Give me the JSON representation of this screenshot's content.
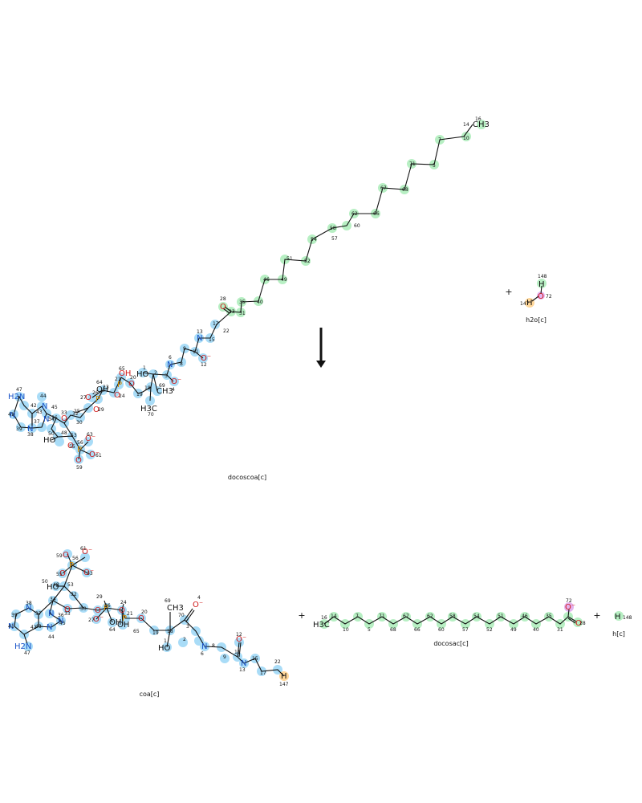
{
  "reactants": {
    "docoscoa": {
      "name": "docoscoa[c]"
    },
    "h2o": {
      "name": "h2o[c]"
    }
  },
  "products": {
    "coa": {
      "name": "coa[c]"
    },
    "docosac": {
      "name": "docosac[c]"
    },
    "h": {
      "name": "h[c]"
    }
  },
  "operators": {
    "plus": "+"
  },
  "atoms": {
    "ch3": "CH3",
    "h3c": "H3C",
    "o": "O",
    "o_minus": "O⁻",
    "h": "H",
    "ho": "HO",
    "oh": "OH",
    "h2n": "H2N",
    "n": "N",
    "p": "P"
  },
  "atom_indices": {
    "chain_top": [
      "16",
      "14",
      "10",
      "7",
      "5",
      "71",
      "68",
      "67",
      "66",
      "62",
      "60",
      "58",
      "57",
      "54",
      "52",
      "51",
      "49",
      "46",
      "40",
      "35",
      "31",
      "33",
      "28",
      "22",
      "17",
      "15",
      "13",
      "11",
      "12",
      "9",
      "8",
      "6",
      "3",
      "4",
      "2",
      "1",
      "69",
      "18",
      "70",
      "20",
      "19",
      "65",
      "21",
      "64",
      "26",
      "24",
      "27",
      "29",
      "23",
      "32",
      "30",
      "25",
      "33",
      "34",
      "36",
      "37",
      "38",
      "39",
      "41",
      "42",
      "43",
      "44",
      "45",
      "47",
      "48",
      "50",
      "53",
      "55",
      "56",
      "59",
      "61",
      "63"
    ],
    "h2o": [
      "148",
      "147",
      "72"
    ],
    "docosac": [
      "16",
      "14",
      "10",
      "7",
      "5",
      "71",
      "68",
      "67",
      "66",
      "62",
      "60",
      "58",
      "57",
      "54",
      "52",
      "51",
      "49",
      "46",
      "40",
      "35",
      "31",
      "72",
      "28"
    ],
    "h_product": [
      "148"
    ],
    "coa_h": [
      "147"
    ]
  },
  "colors": {
    "highlight_green": "#b7efc3",
    "highlight_blue": "#a9dcf7",
    "highlight_orange": "#ffd79a",
    "nitrogen": "#1a54c9",
    "oxygen": "#d11a1a",
    "phosphorus": "#d28a00"
  }
}
